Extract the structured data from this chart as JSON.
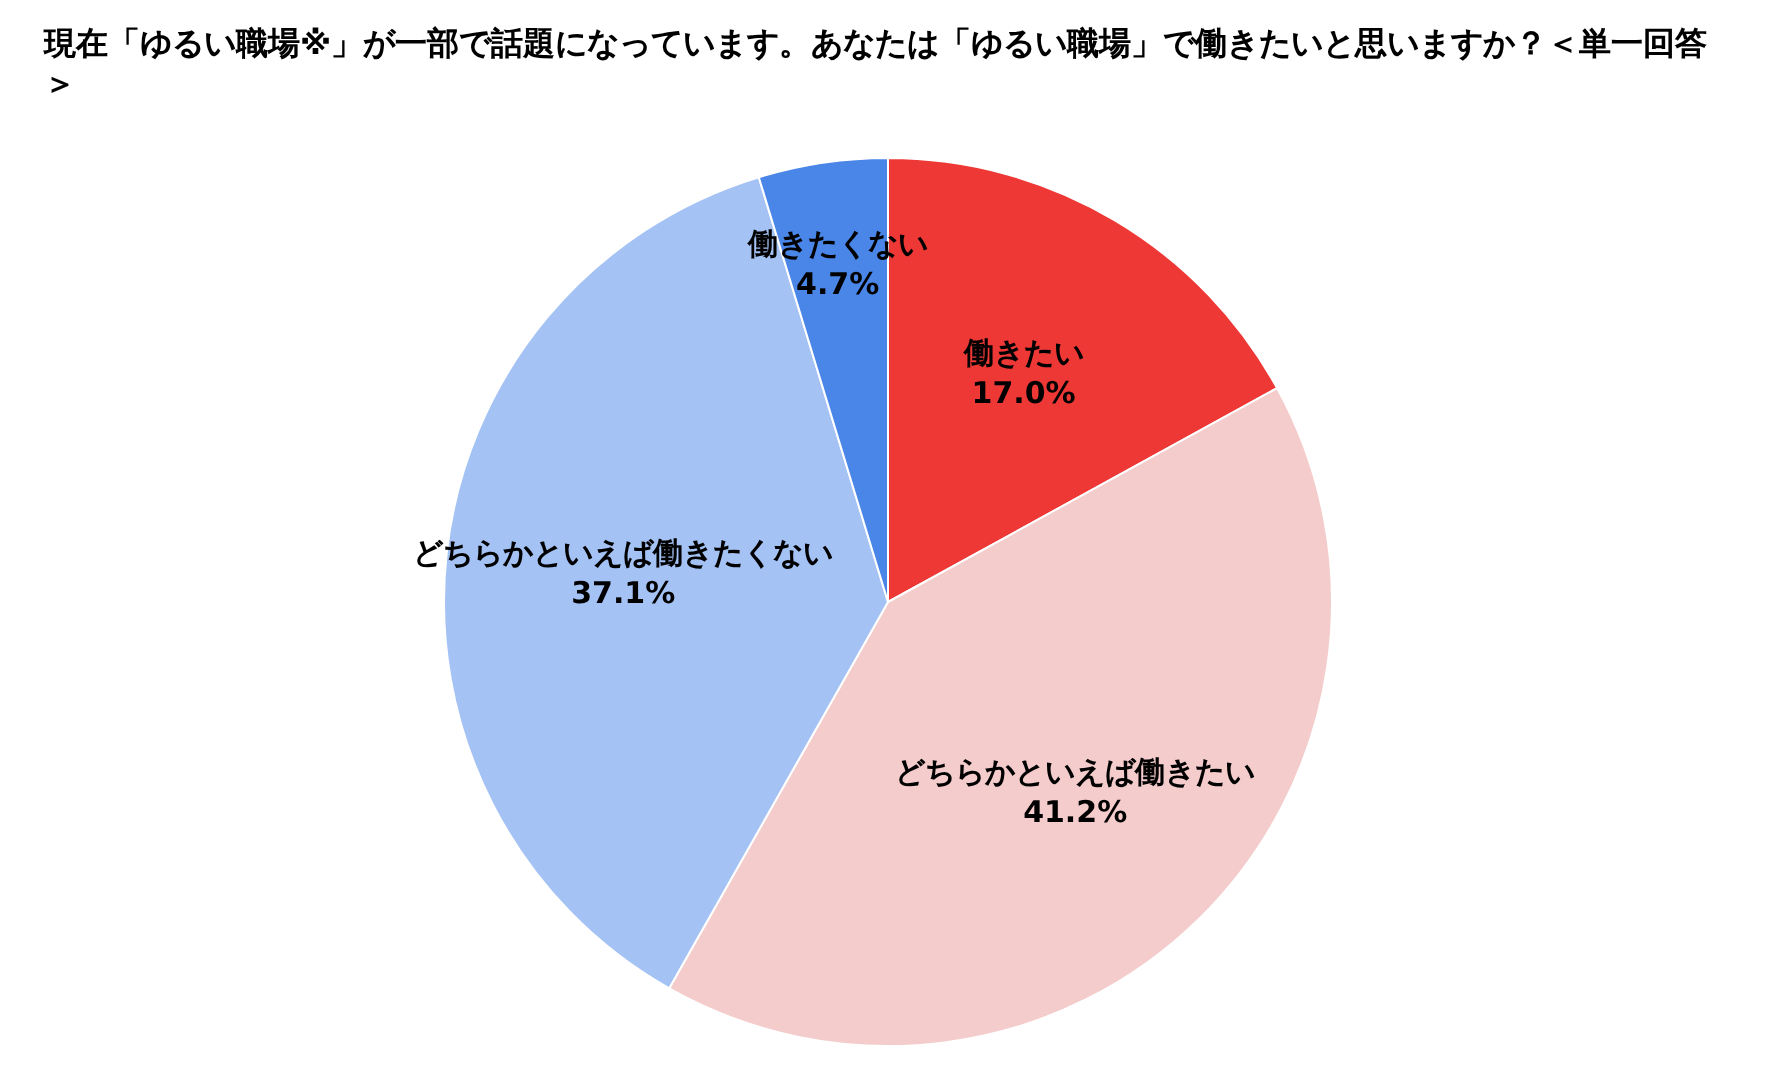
{
  "chart_data": {
    "type": "pie",
    "title": "現在「ゆるい職場※」が一部で話題になっています。あなたは「ゆるい職場」で働きたいと思いますか？＜単一回答＞",
    "categories": [
      "働きたい",
      "どちらかといえば働きたい",
      "どちらかといえば働きたくない",
      "働きたくない"
    ],
    "values": [
      17.0,
      41.2,
      37.1,
      4.7
    ],
    "value_labels": [
      "17.0%",
      "41.2%",
      "37.1%",
      "4.7%"
    ],
    "colors": [
      "#ee3835",
      "#f4cccc",
      "#a4c2f4",
      "#4a86e8"
    ]
  }
}
